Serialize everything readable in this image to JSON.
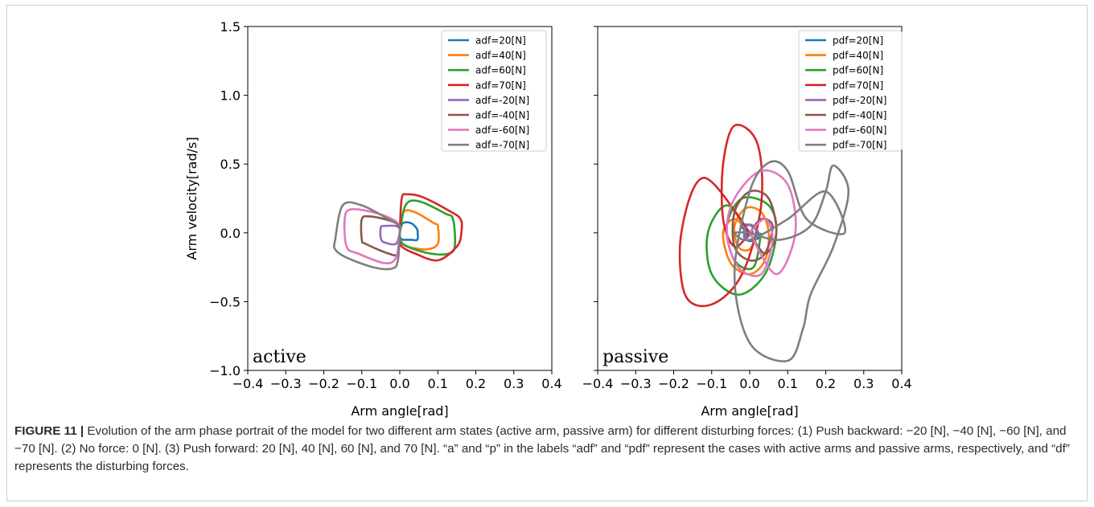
{
  "figure": {
    "caption_label": "FIGURE 11 |",
    "caption_text": " Evolution of the arm phase portrait of the model for two different arm states (active arm, passive arm) for different disturbing forces: (1) Push backward: −20 [N], −40 [N], −60 [N], and −70 [N]. (2) No force: 0 [N]. (3) Push forward: 20 [N], 40 [N], 60 [N], and 70 [N]. “a” and “p” in the labels “adf” and “pdf” represent the cases with active arms and passive arms, respectively, and “df” represents the disturbing forces."
  },
  "colors": [
    "#1f77b4",
    "#ff7f0e",
    "#2ca02c",
    "#d62728",
    "#9467bd",
    "#8c564b",
    "#e377c2",
    "#7f7f7f"
  ],
  "chart_data": [
    {
      "type": "line",
      "panel_annotation": "active",
      "xlabel": "Arm angle[rad]",
      "ylabel": "Arm velocity[rad/s]",
      "xlim": [
        -0.4,
        0.4
      ],
      "ylim": [
        -1.0,
        1.5
      ],
      "x_ticks": [
        -0.4,
        -0.3,
        -0.2,
        -0.1,
        0.0,
        0.1,
        0.2,
        0.3,
        0.4
      ],
      "x_tick_labels": [
        "−0.4",
        "−0.3",
        "−0.2",
        "−0.1",
        "0.0",
        "0.1",
        "0.2",
        "0.3",
        "0.4"
      ],
      "y_ticks": [
        -1.0,
        -0.5,
        0.0,
        0.5,
        1.0,
        1.5
      ],
      "y_tick_labels": [
        "−1.0",
        "−0.5",
        "0.0",
        "0.5",
        "1.0",
        "1.5"
      ],
      "legend_position": "top-right",
      "grid": false,
      "series": [
        {
          "name": "adf=20[N]",
          "x": [
            0.0,
            0.008,
            0.03,
            0.045,
            0.047,
            0.046,
            0.03,
            0.008,
            0.002,
            0.0,
            0.0
          ],
          "y": [
            0.0,
            0.07,
            0.07,
            0.03,
            0.0,
            -0.05,
            -0.05,
            -0.05,
            -0.04,
            -0.02,
            0.0
          ]
        },
        {
          "name": "adf=40[N]",
          "x": [
            0.0,
            0.01,
            0.04,
            0.09,
            0.1,
            0.1,
            0.07,
            0.02,
            0.0,
            0.0
          ],
          "y": [
            0.0,
            0.15,
            0.15,
            0.07,
            0.05,
            -0.08,
            -0.12,
            -0.1,
            -0.06,
            0.0
          ]
        },
        {
          "name": "adf=60[N]",
          "x": [
            0.0,
            0.015,
            0.05,
            0.12,
            0.14,
            0.145,
            0.13,
            0.08,
            0.02,
            0.0,
            0.0
          ],
          "y": [
            0.0,
            0.2,
            0.23,
            0.14,
            0.1,
            -0.09,
            -0.15,
            -0.15,
            -0.1,
            -0.05,
            0.0
          ]
        },
        {
          "name": "adf=70[N]",
          "x": [
            0.0,
            0.005,
            0.02,
            0.06,
            0.13,
            0.16,
            0.162,
            0.15,
            0.1,
            0.04,
            0.005,
            0.0,
            0.0
          ],
          "y": [
            0.0,
            0.25,
            0.28,
            0.26,
            0.16,
            0.1,
            0.0,
            -0.1,
            -0.2,
            -0.15,
            -0.1,
            -0.05,
            0.0
          ]
        },
        {
          "name": "adf=-20[N]",
          "x": [
            0.0,
            -0.01,
            -0.04,
            -0.05,
            -0.05,
            -0.04,
            -0.01,
            0.0,
            0.0
          ],
          "y": [
            0.0,
            -0.08,
            -0.07,
            -0.04,
            0.04,
            0.05,
            0.05,
            0.03,
            0.0
          ]
        },
        {
          "name": "adf=-40[N]",
          "x": [
            0.0,
            -0.005,
            -0.03,
            -0.09,
            -0.1,
            -0.1,
            -0.08,
            -0.04,
            -0.01,
            0.0,
            0.0
          ],
          "y": [
            0.0,
            -0.15,
            -0.15,
            -0.08,
            -0.05,
            0.1,
            0.12,
            0.1,
            0.07,
            0.03,
            0.0
          ]
        },
        {
          "name": "adf=-60[N]",
          "x": [
            0.0,
            -0.01,
            -0.04,
            -0.11,
            -0.14,
            -0.145,
            -0.13,
            -0.07,
            -0.02,
            0.0,
            0.0
          ],
          "y": [
            0.0,
            -0.18,
            -0.22,
            -0.15,
            -0.1,
            0.1,
            0.17,
            0.15,
            0.1,
            0.05,
            0.0
          ]
        },
        {
          "name": "adf=-70[N]",
          "x": [
            0.0,
            -0.005,
            -0.02,
            -0.07,
            -0.14,
            -0.17,
            -0.17,
            -0.15,
            -0.1,
            -0.03,
            0.0,
            0.0
          ],
          "y": [
            0.0,
            -0.2,
            -0.26,
            -0.25,
            -0.18,
            -0.12,
            -0.05,
            0.2,
            0.2,
            0.1,
            0.05,
            0.0
          ]
        }
      ]
    },
    {
      "type": "line",
      "panel_annotation": "passive",
      "xlabel": "Arm angle[rad]",
      "ylabel": "",
      "xlim": [
        -0.4,
        0.4
      ],
      "ylim": [
        -1.0,
        1.5
      ],
      "x_ticks": [
        -0.4,
        -0.3,
        -0.2,
        -0.1,
        0.0,
        0.1,
        0.2,
        0.3,
        0.4
      ],
      "x_tick_labels": [
        "−0.4",
        "−0.3",
        "−0.2",
        "−0.1",
        "0.0",
        "0.1",
        "0.2",
        "0.3",
        "0.4"
      ],
      "y_ticks": [
        -1.0,
        -0.5,
        0.0,
        0.5,
        1.0,
        1.5
      ],
      "y_tick_labels": [],
      "legend_position": "top-right",
      "grid": false,
      "series": [
        {
          "name": "pdf=20[N]",
          "x": [
            0.0,
            -0.02,
            -0.005,
            0.015,
            0.025,
            0.0,
            -0.015,
            0.01
          ],
          "y": [
            0.0,
            0.04,
            0.06,
            0.03,
            -0.03,
            -0.06,
            -0.02,
            0.01
          ]
        },
        {
          "name": "pdf=40[N]",
          "x": [
            0.0,
            -0.04,
            -0.07,
            -0.05,
            0.0,
            0.04,
            0.05,
            0.03,
            -0.01,
            -0.04,
            -0.03,
            0.0,
            0.02
          ],
          "y": [
            0.0,
            0.1,
            0.0,
            -0.22,
            -0.3,
            -0.2,
            0.0,
            0.15,
            0.18,
            0.05,
            -0.1,
            -0.12,
            0.0
          ]
        },
        {
          "name": "pdf=60[N]",
          "x": [
            0.0,
            -0.06,
            -0.11,
            -0.1,
            -0.03,
            0.04,
            0.07,
            0.05,
            -0.02,
            -0.06,
            -0.04,
            0.01,
            0.03
          ],
          "y": [
            0.0,
            0.2,
            0.0,
            -0.3,
            -0.45,
            -0.3,
            0.0,
            0.2,
            0.25,
            0.05,
            -0.2,
            -0.25,
            0.0
          ]
        },
        {
          "name": "pdf=70[N]",
          "x": [
            0.0,
            -0.12,
            -0.18,
            -0.17,
            -0.1,
            -0.02,
            0.03,
            0.02,
            -0.04,
            -0.07,
            -0.07,
            -0.04,
            0.0
          ],
          "y": [
            0.0,
            0.4,
            0.0,
            -0.45,
            -0.52,
            -0.3,
            0.2,
            0.65,
            0.78,
            0.5,
            0.1,
            -0.1,
            0.0
          ]
        },
        {
          "name": "pdf=-20[N]",
          "x": [
            0.0,
            0.015,
            0.02,
            0.0,
            -0.015,
            -0.01,
            0.005
          ],
          "y": [
            0.0,
            -0.05,
            0.02,
            0.06,
            0.02,
            -0.04,
            0.0
          ]
        },
        {
          "name": "pdf=-40[N]",
          "x": [
            0.0,
            0.04,
            0.07,
            0.05,
            0.0,
            -0.04,
            -0.04,
            0.0,
            0.04,
            0.06,
            0.03,
            0.0
          ],
          "y": [
            0.0,
            -0.15,
            0.0,
            0.25,
            0.3,
            0.15,
            -0.1,
            -0.2,
            -0.15,
            0.05,
            0.1,
            0.0
          ]
        },
        {
          "name": "pdf=-60[N]",
          "x": [
            0.0,
            0.07,
            0.12,
            0.1,
            0.03,
            -0.04,
            -0.06,
            -0.03,
            0.03,
            0.06,
            0.04,
            0.0
          ],
          "y": [
            0.0,
            -0.3,
            0.0,
            0.35,
            0.45,
            0.25,
            0.0,
            -0.25,
            -0.3,
            -0.05,
            0.1,
            0.0
          ]
        },
        {
          "name": "pdf=-70[N]",
          "x": [
            0.0,
            0.08,
            0.16,
            0.2,
            0.22,
            0.26,
            0.22,
            0.16,
            0.14,
            0.1,
            0.0,
            -0.04,
            0.0,
            0.05,
            0.1,
            0.15,
            0.25,
            0.2,
            0.1,
            0.0,
            -0.04,
            0.0
          ],
          "y": [
            0.0,
            -0.05,
            0.05,
            0.3,
            0.49,
            0.3,
            -0.1,
            -0.45,
            -0.7,
            -0.93,
            -0.8,
            -0.3,
            0.3,
            0.51,
            0.45,
            0.1,
            0.0,
            0.3,
            0.1,
            -0.05,
            0.0,
            0.0
          ]
        }
      ]
    }
  ]
}
